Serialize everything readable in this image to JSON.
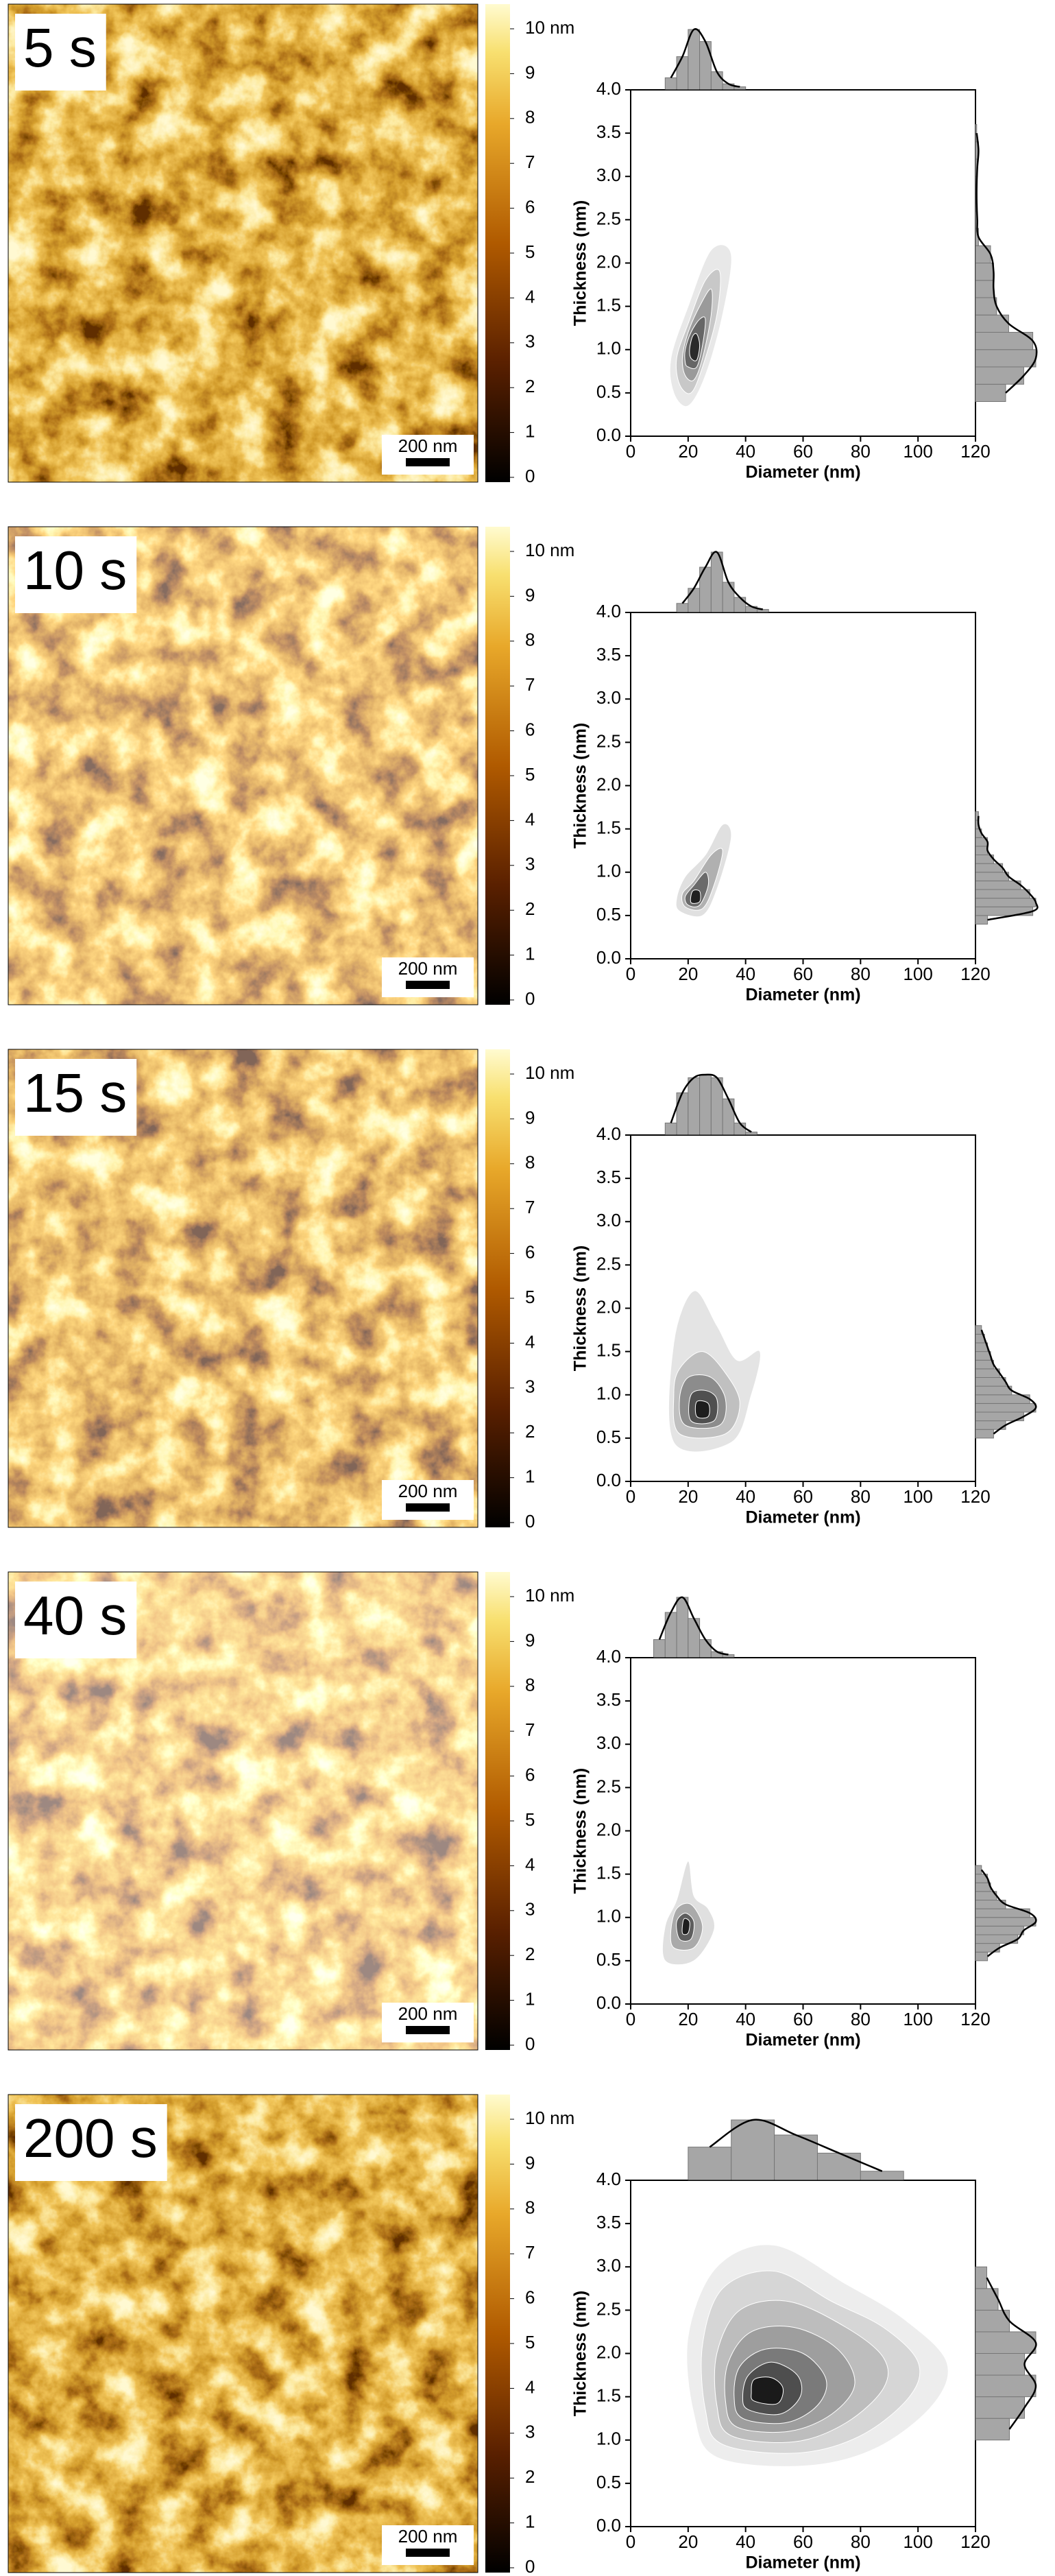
{
  "chart_data": [
    {
      "type": "joint_kde",
      "image_label": "5 s",
      "scale_bar_label": "200 nm",
      "colorbar": {
        "lim": [
          0,
          10
        ],
        "ticks": [
          0,
          1,
          2,
          3,
          4,
          5,
          6,
          7,
          8,
          9,
          {
            "value": 10,
            "label": "10 nm"
          }
        ]
      },
      "xlabel": "Diameter (nm)",
      "ylabel": "Thickness (nm)",
      "xlim": [
        0,
        120
      ],
      "xticks": [
        0,
        20,
        40,
        60,
        80,
        100,
        120
      ],
      "ylim": [
        0,
        4
      ],
      "yticks": [
        {
          "value": 0,
          "label": "0.0"
        },
        0.5,
        {
          "value": 1,
          "label": "1.0"
        },
        1.5,
        {
          "value": 2,
          "label": "2.0"
        },
        2.5,
        {
          "value": 3,
          "label": "3.0"
        },
        3.5,
        {
          "value": 4,
          "label": "4.0"
        }
      ],
      "x_hist": {
        "bins": [
          12,
          16,
          20,
          24,
          28,
          32,
          36,
          40
        ],
        "counts": [
          0.2,
          0.55,
          1.0,
          0.8,
          0.3,
          0.1,
          0.05
        ]
      },
      "y_hist": {
        "bins": [
          0.4,
          0.6,
          0.8,
          1.0,
          1.2,
          1.4,
          1.6,
          1.8,
          2.0,
          2.2,
          2.4,
          2.6,
          2.8,
          3.0,
          3.2,
          3.4,
          3.6
        ],
        "counts": [
          0.5,
          0.8,
          1.0,
          0.95,
          0.55,
          0.35,
          0.3,
          0.3,
          0.25,
          0.05,
          0.03,
          0.02,
          0.02,
          0.03,
          0.05,
          0.02
        ]
      },
      "hist_color": "#a6a6a6",
      "curve_color": "#000000",
      "contour_colors": [
        "#e8e8e8",
        "#c8c8c8",
        "#9a9a9a",
        "#666666",
        "#2a2a2a"
      ],
      "contours": [
        {
          "x": [
            15,
            20,
            26,
            32,
            35,
            28,
            20,
            14
          ],
          "y": [
            0.5,
            0.35,
            0.7,
            1.4,
            2.1,
            2.15,
            1.5,
            0.9
          ]
        },
        {
          "x": [
            17,
            21,
            25,
            30,
            31,
            26,
            20,
            16
          ],
          "y": [
            0.6,
            0.5,
            0.8,
            1.4,
            1.9,
            1.8,
            1.3,
            0.9
          ]
        },
        {
          "x": [
            19,
            22,
            25,
            28,
            28,
            24,
            20,
            18
          ],
          "y": [
            0.7,
            0.65,
            0.9,
            1.4,
            1.7,
            1.5,
            1.2,
            0.9
          ]
        },
        {
          "x": [
            20,
            23,
            25,
            26,
            24,
            21,
            19,
            19
          ],
          "y": [
            0.8,
            0.8,
            1.05,
            1.35,
            1.35,
            1.2,
            1.0,
            0.85
          ]
        },
        {
          "x": [
            21,
            23,
            24,
            23,
            21.5,
            20.5
          ],
          "y": [
            0.9,
            0.88,
            1.05,
            1.18,
            1.15,
            1.0
          ]
        }
      ]
    },
    {
      "type": "joint_kde",
      "image_label": "10 s",
      "scale_bar_label": "200 nm",
      "colorbar": {
        "lim": [
          0,
          10
        ],
        "ticks": [
          0,
          1,
          2,
          3,
          4,
          5,
          6,
          7,
          8,
          9,
          {
            "value": 10,
            "label": "10 nm"
          }
        ]
      },
      "xlabel": "Diameter (nm)",
      "ylabel": "Thickness (nm)",
      "xlim": [
        0,
        120
      ],
      "xticks": [
        0,
        20,
        40,
        60,
        80,
        100,
        120
      ],
      "ylim": [
        0,
        4
      ],
      "yticks": [
        {
          "value": 0,
          "label": "0.0"
        },
        0.5,
        {
          "value": 1,
          "label": "1.0"
        },
        1.5,
        {
          "value": 2,
          "label": "2.0"
        },
        2.5,
        {
          "value": 3,
          "label": "3.0"
        },
        3.5,
        {
          "value": 4,
          "label": "4.0"
        }
      ],
      "x_hist": {
        "bins": [
          16,
          20,
          24,
          28,
          32,
          36,
          40,
          44,
          48
        ],
        "counts": [
          0.15,
          0.4,
          0.75,
          1.0,
          0.5,
          0.25,
          0.1,
          0.05
        ]
      },
      "y_hist": {
        "bins": [
          0.4,
          0.5,
          0.6,
          0.7,
          0.8,
          0.9,
          1.0,
          1.1,
          1.2,
          1.3,
          1.4,
          1.5,
          1.6,
          1.7
        ],
        "counts": [
          0.2,
          0.95,
          1.0,
          0.9,
          0.75,
          0.55,
          0.45,
          0.3,
          0.2,
          0.2,
          0.1,
          0.05,
          0.05
        ]
      },
      "hist_color": "#a6a6a6",
      "curve_color": "#000000",
      "contour_colors": [
        "#e0e0e0",
        "#b0b0b0",
        "#6a6a6a",
        "#202020"
      ],
      "contours": [
        {
          "x": [
            17,
            25,
            30,
            35,
            32,
            26,
            19,
            16
          ],
          "y": [
            0.55,
            0.5,
            0.8,
            1.4,
            1.55,
            1.2,
            0.95,
            0.7
          ]
        },
        {
          "x": [
            19,
            25,
            29,
            32,
            28,
            22,
            18
          ],
          "y": [
            0.6,
            0.58,
            0.85,
            1.25,
            1.2,
            0.9,
            0.75
          ]
        },
        {
          "x": [
            20,
            24,
            27,
            26,
            22,
            19
          ],
          "y": [
            0.62,
            0.62,
            0.85,
            1.0,
            0.85,
            0.72
          ]
        },
        {
          "x": [
            21,
            24,
            24,
            21.5
          ],
          "y": [
            0.65,
            0.66,
            0.78,
            0.78
          ]
        }
      ]
    },
    {
      "type": "joint_kde",
      "image_label": "15 s",
      "scale_bar_label": "200 nm",
      "colorbar": {
        "lim": [
          0,
          10
        ],
        "ticks": [
          0,
          1,
          2,
          3,
          4,
          5,
          6,
          7,
          8,
          9,
          {
            "value": 10,
            "label": "10 nm"
          }
        ]
      },
      "xlabel": "Diameter (nm)",
      "ylabel": "Thickness (nm)",
      "xlim": [
        0,
        120
      ],
      "xticks": [
        0,
        20,
        40,
        60,
        80,
        100,
        120
      ],
      "ylim": [
        0,
        4
      ],
      "yticks": [
        {
          "value": 0,
          "label": "0.0"
        },
        0.5,
        {
          "value": 1,
          "label": "1.0"
        },
        1.5,
        {
          "value": 2,
          "label": "2.0"
        },
        2.5,
        {
          "value": 3,
          "label": "3.0"
        },
        3.5,
        {
          "value": 4,
          "label": "4.0"
        }
      ],
      "x_hist": {
        "bins": [
          12,
          16,
          20,
          24,
          28,
          32,
          36,
          40,
          44
        ],
        "counts": [
          0.2,
          0.7,
          0.95,
          1.0,
          0.95,
          0.6,
          0.2,
          0.05
        ]
      },
      "y_hist": {
        "bins": [
          0.5,
          0.6,
          0.7,
          0.8,
          0.9,
          1.0,
          1.1,
          1.2,
          1.3,
          1.4,
          1.5,
          1.6,
          1.7,
          1.8
        ],
        "counts": [
          0.3,
          0.5,
          0.8,
          1.0,
          0.9,
          0.6,
          0.5,
          0.4,
          0.3,
          0.25,
          0.2,
          0.15,
          0.1
        ]
      },
      "hist_color": "#a6a6a6",
      "curve_color": "#000000",
      "contour_colors": [
        "#e4e4e4",
        "#c0c0c0",
        "#8c8c8c",
        "#505050",
        "#1e1e1e"
      ],
      "contours": [
        {
          "x": [
            15,
            35,
            42,
            45,
            37,
            30,
            22,
            15
          ],
          "y": [
            0.45,
            0.45,
            1.0,
            1.5,
            1.4,
            1.8,
            2.2,
            1.6
          ]
        },
        {
          "x": [
            17,
            33,
            38,
            33,
            25,
            17,
            15
          ],
          "y": [
            0.55,
            0.55,
            0.9,
            1.25,
            1.5,
            1.3,
            1.0
          ]
        },
        {
          "x": [
            19,
            31,
            33,
            28,
            20,
            17
          ],
          "y": [
            0.65,
            0.65,
            0.95,
            1.2,
            1.2,
            0.95
          ]
        },
        {
          "x": [
            21,
            29,
            30,
            26,
            21
          ],
          "y": [
            0.7,
            0.7,
            0.95,
            1.05,
            1.0
          ]
        },
        {
          "x": [
            23,
            27,
            27,
            23
          ],
          "y": [
            0.75,
            0.75,
            0.9,
            0.92
          ]
        }
      ]
    },
    {
      "type": "joint_kde",
      "image_label": "40 s",
      "scale_bar_label": "200 nm",
      "colorbar": {
        "lim": [
          0,
          10
        ],
        "ticks": [
          0,
          1,
          2,
          3,
          4,
          5,
          6,
          7,
          8,
          9,
          {
            "value": 10,
            "label": "10 nm"
          }
        ]
      },
      "xlabel": "Diameter (nm)",
      "ylabel": "Thickness (nm)",
      "xlim": [
        0,
        120
      ],
      "xticks": [
        0,
        20,
        40,
        60,
        80,
        100,
        120
      ],
      "ylim": [
        0,
        4
      ],
      "yticks": [
        {
          "value": 0,
          "label": "0.0"
        },
        0.5,
        {
          "value": 1,
          "label": "1.0"
        },
        1.5,
        {
          "value": 2,
          "label": "2.0"
        },
        2.5,
        {
          "value": 3,
          "label": "3.0"
        },
        3.5,
        {
          "value": 4,
          "label": "4.0"
        }
      ],
      "x_hist": {
        "bins": [
          8,
          12,
          16,
          20,
          24,
          28,
          32,
          36
        ],
        "counts": [
          0.3,
          0.75,
          1.0,
          0.65,
          0.3,
          0.1,
          0.05
        ]
      },
      "y_hist": {
        "bins": [
          0.5,
          0.6,
          0.7,
          0.8,
          0.9,
          1.0,
          1.1,
          1.2,
          1.3,
          1.4,
          1.5,
          1.6
        ],
        "counts": [
          0.2,
          0.4,
          0.7,
          0.8,
          1.0,
          0.9,
          0.5,
          0.35,
          0.25,
          0.2,
          0.1
        ]
      },
      "hist_color": "#a6a6a6",
      "curve_color": "#000000",
      "contour_colors": [
        "#e0e0e0",
        "#aaaaaa",
        "#5e5e5e",
        "#1e1e1e"
      ],
      "contours": [
        {
          "x": [
            12,
            22,
            29,
            27,
            22,
            20,
            16,
            12
          ],
          "y": [
            0.5,
            0.5,
            0.85,
            1.1,
            1.25,
            1.65,
            1.2,
            0.9
          ]
        },
        {
          "x": [
            15,
            22,
            25,
            21,
            16,
            14
          ],
          "y": [
            0.65,
            0.65,
            0.9,
            1.15,
            1.1,
            0.85
          ]
        },
        {
          "x": [
            17,
            21,
            22,
            19,
            16
          ],
          "y": [
            0.75,
            0.75,
            0.95,
            1.05,
            0.95
          ]
        },
        {
          "x": [
            18,
            20,
            20.5,
            18.5
          ],
          "y": [
            0.82,
            0.82,
            0.95,
            0.98
          ]
        }
      ]
    },
    {
      "type": "joint_kde",
      "image_label": "200 s",
      "scale_bar_label": "200 nm",
      "colorbar": {
        "lim": [
          0,
          10
        ],
        "ticks": [
          0,
          1,
          2,
          3,
          4,
          5,
          6,
          7,
          8,
          9,
          {
            "value": 10,
            "label": "10 nm"
          }
        ]
      },
      "xlabel": "Diameter (nm)",
      "ylabel": "Thickness (nm)",
      "xlim": [
        0,
        120
      ],
      "xticks": [
        0,
        20,
        40,
        60,
        80,
        100,
        120
      ],
      "ylim": [
        0,
        4
      ],
      "yticks": [
        {
          "value": 0,
          "label": "0.0"
        },
        0.5,
        {
          "value": 1,
          "label": "1.0"
        },
        1.5,
        {
          "value": 2,
          "label": "2.0"
        },
        2.5,
        {
          "value": 3,
          "label": "3.0"
        },
        3.5,
        {
          "value": 4,
          "label": "4.0"
        }
      ],
      "x_hist": {
        "bins": [
          20,
          35,
          50,
          65,
          80,
          95
        ],
        "counts": [
          0.55,
          1.0,
          0.75,
          0.45,
          0.15
        ]
      },
      "y_hist": {
        "bins": [
          1.0,
          1.25,
          1.5,
          1.75,
          2.0,
          2.25,
          2.5,
          2.75,
          3.0
        ],
        "counts": [
          0.45,
          0.65,
          0.8,
          0.65,
          0.8,
          0.45,
          0.3,
          0.15
        ]
      },
      "hist_color": "#a6a6a6",
      "curve_color": "#000000",
      "contour_colors": [
        "#ededed",
        "#d6d6d6",
        "#bdbdbd",
        "#9e9e9e",
        "#7a7a7a",
        "#4e4e4e",
        "#1a1a1a"
      ],
      "contours": [
        {
          "x": [
            30,
            60,
            85,
            105,
            110,
            95,
            75,
            50,
            30,
            20,
            22
          ],
          "y": [
            0.8,
            0.7,
            0.9,
            1.4,
            1.9,
            2.4,
            2.8,
            3.25,
            3.0,
            2.2,
            1.3
          ]
        },
        {
          "x": [
            32,
            58,
            80,
            97,
            100,
            88,
            70,
            50,
            32,
            25,
            26
          ],
          "y": [
            0.95,
            0.85,
            1.05,
            1.5,
            1.9,
            2.3,
            2.6,
            2.95,
            2.75,
            2.1,
            1.35
          ]
        },
        {
          "x": [
            35,
            57,
            75,
            88,
            88,
            75,
            55,
            38,
            30,
            30
          ],
          "y": [
            1.05,
            0.98,
            1.2,
            1.6,
            1.95,
            2.3,
            2.6,
            2.5,
            2.0,
            1.4
          ]
        },
        {
          "x": [
            37,
            55,
            70,
            78,
            72,
            57,
            42,
            34,
            33
          ],
          "y": [
            1.15,
            1.1,
            1.3,
            1.65,
            2.05,
            2.3,
            2.25,
            1.9,
            1.45
          ]
        },
        {
          "x": [
            39,
            54,
            65,
            68,
            60,
            47,
            38,
            36
          ],
          "y": [
            1.25,
            1.2,
            1.4,
            1.7,
            2.0,
            2.05,
            1.85,
            1.5
          ]
        },
        {
          "x": [
            41,
            52,
            59,
            58,
            49,
            41,
            39
          ],
          "y": [
            1.35,
            1.3,
            1.5,
            1.75,
            1.9,
            1.75,
            1.5
          ]
        },
        {
          "x": [
            43,
            51,
            53,
            49,
            43,
            42
          ],
          "y": [
            1.45,
            1.42,
            1.6,
            1.72,
            1.7,
            1.55
          ]
        }
      ]
    }
  ]
}
